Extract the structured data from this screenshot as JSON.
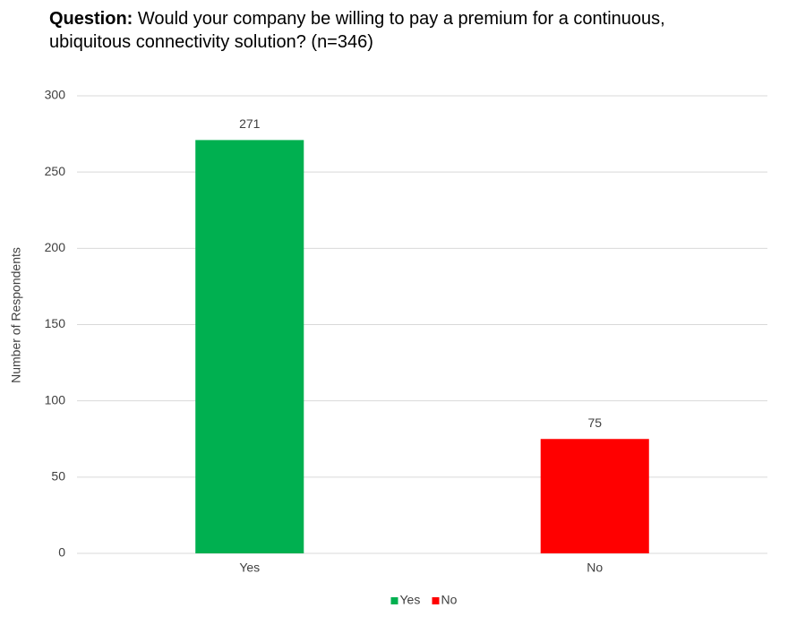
{
  "chart_data": {
    "type": "bar",
    "title_label": "Question:",
    "title": "Would your company be willing to pay a premium for a continuous, ubiquitous connectivity solution? (n=346)",
    "y_label": "Number of Respondents",
    "categories": [
      "Yes",
      "No"
    ],
    "values": [
      271,
      75
    ],
    "colors": [
      "#00b050",
      "#ff0000"
    ],
    "ylim": [
      0,
      300
    ],
    "yticks": [
      0,
      50,
      100,
      150,
      200,
      250,
      300
    ],
    "grid": true,
    "legend": "bottom"
  }
}
